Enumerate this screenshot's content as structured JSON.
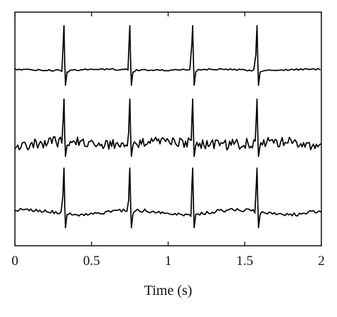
{
  "chart_data": {
    "type": "line",
    "title": "",
    "xlabel": "Time (s)",
    "ylabel": "",
    "xlim": [
      0,
      2
    ],
    "xticks": [
      0,
      0.5,
      1,
      1.5,
      2
    ],
    "xtick_labels": [
      "0",
      "0.5",
      "1",
      "1.5",
      "2"
    ],
    "ylim": [
      -1,
      1
    ],
    "yticks": [],
    "grid": false,
    "legend": "none",
    "stroke_color": "#000000",
    "series": [
      {
        "x": [
          0,
          0.29,
          0.3,
          0.31,
          0.315,
          0.32,
          0.325,
          0.33,
          0.34,
          0.36,
          0.72,
          0.73,
          0.74,
          0.745,
          0.75,
          0.755,
          0.76,
          0.77,
          0.79,
          1.13,
          1.14,
          1.15,
          1.155,
          1.16,
          1.165,
          1.17,
          1.18,
          1.2,
          1.55,
          1.56,
          1.57,
          1.575,
          1.58,
          1.585,
          1.59,
          1.6,
          1.62,
          2
        ],
        "y": [
          0,
          0,
          0.01,
          -0.03,
          0.6,
          1,
          0.2,
          -0.35,
          -0.05,
          0,
          0,
          0.01,
          -0.03,
          0.6,
          1,
          0.2,
          -0.35,
          -0.05,
          0,
          0,
          0.01,
          -0.03,
          0.6,
          1,
          0.2,
          -0.35,
          -0.05,
          0,
          0,
          0.01,
          -0.03,
          0.6,
          1,
          0.2,
          -0.35,
          -0.05,
          0,
          0
        ]
      },
      {
        "x": [
          0,
          0.29,
          0.3,
          0.31,
          0.315,
          0.32,
          0.325,
          0.33,
          0.34,
          0.36,
          0.72,
          0.73,
          0.74,
          0.745,
          0.75,
          0.755,
          0.76,
          0.77,
          0.79,
          1.13,
          1.14,
          1.15,
          1.155,
          1.16,
          1.165,
          1.17,
          1.18,
          1.2,
          1.55,
          1.56,
          1.57,
          1.575,
          1.58,
          1.585,
          1.59,
          1.6,
          1.62,
          2
        ],
        "y": [
          0,
          0,
          0.01,
          -0.03,
          0.55,
          1,
          0.2,
          -0.3,
          -0.05,
          0,
          0,
          0.01,
          -0.03,
          0.55,
          1,
          0.2,
          -0.3,
          -0.05,
          0,
          0,
          0.01,
          -0.03,
          0.55,
          1,
          0.2,
          -0.3,
          -0.05,
          0,
          0,
          0.01,
          -0.03,
          0.55,
          1,
          0.2,
          -0.3,
          -0.05,
          0,
          0
        ]
      },
      {
        "x": [
          0,
          0.29,
          0.3,
          0.31,
          0.315,
          0.32,
          0.325,
          0.33,
          0.34,
          0.36,
          0.72,
          0.73,
          0.74,
          0.745,
          0.75,
          0.755,
          0.76,
          0.77,
          0.79,
          1.13,
          1.14,
          1.15,
          1.155,
          1.16,
          1.165,
          1.17,
          1.18,
          1.2,
          1.55,
          1.56,
          1.57,
          1.575,
          1.58,
          1.585,
          1.59,
          1.6,
          1.62,
          2
        ],
        "y": [
          0,
          0,
          0.01,
          -0.03,
          0.6,
          1,
          0.2,
          -0.35,
          -0.05,
          0,
          0,
          0.01,
          -0.03,
          0.6,
          1,
          0.2,
          -0.35,
          -0.05,
          0,
          0,
          0.01,
          -0.03,
          0.6,
          1,
          0.2,
          -0.35,
          -0.05,
          0,
          0,
          0.01,
          -0.03,
          0.6,
          1,
          0.2,
          -0.35,
          -0.05,
          0,
          0
        ]
      }
    ]
  }
}
